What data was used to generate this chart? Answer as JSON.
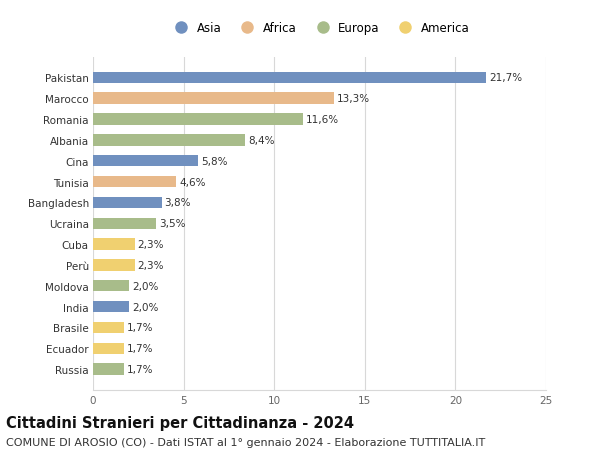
{
  "categories": [
    "Pakistan",
    "Marocco",
    "Romania",
    "Albania",
    "Cina",
    "Tunisia",
    "Bangladesh",
    "Ucraina",
    "Cuba",
    "Perù",
    "Moldova",
    "India",
    "Brasile",
    "Ecuador",
    "Russia"
  ],
  "values": [
    21.7,
    13.3,
    11.6,
    8.4,
    5.8,
    4.6,
    3.8,
    3.5,
    2.3,
    2.3,
    2.0,
    2.0,
    1.7,
    1.7,
    1.7
  ],
  "labels": [
    "21,7%",
    "13,3%",
    "11,6%",
    "8,4%",
    "5,8%",
    "4,6%",
    "3,8%",
    "3,5%",
    "2,3%",
    "2,3%",
    "2,0%",
    "2,0%",
    "1,7%",
    "1,7%",
    "1,7%"
  ],
  "continent": [
    "Asia",
    "Africa",
    "Europa",
    "Europa",
    "Asia",
    "Africa",
    "Asia",
    "Europa",
    "America",
    "America",
    "Europa",
    "Asia",
    "America",
    "America",
    "Europa"
  ],
  "colors": {
    "Asia": "#7090bf",
    "Africa": "#e8b98a",
    "Europa": "#a8bc8a",
    "America": "#f0d070"
  },
  "xlim": [
    0,
    25
  ],
  "xticks": [
    0,
    5,
    10,
    15,
    20,
    25
  ],
  "title": "Cittadini Stranieri per Cittadinanza - 2024",
  "subtitle": "COMUNE DI AROSIO (CO) - Dati ISTAT al 1° gennaio 2024 - Elaborazione TUTTITALIA.IT",
  "background_color": "#ffffff",
  "grid_color": "#d8d8d8",
  "bar_height": 0.55,
  "title_fontsize": 10.5,
  "subtitle_fontsize": 8,
  "label_fontsize": 7.5,
  "tick_fontsize": 7.5,
  "legend_fontsize": 8.5
}
